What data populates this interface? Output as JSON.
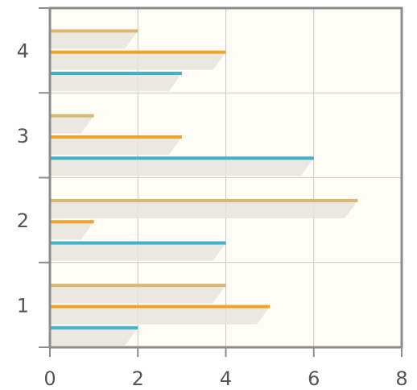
{
  "chart_data": {
    "type": "bar",
    "orientation": "horizontal",
    "categories": [
      "1",
      "2",
      "3",
      "4"
    ],
    "series": [
      {
        "values": [
          2,
          4,
          6,
          3
        ],
        "color": "#3fb1c8"
      },
      {
        "values": [
          5,
          1,
          3,
          4
        ],
        "color": "#f0a326"
      },
      {
        "values": [
          4,
          7,
          1,
          2
        ],
        "color": "#d9b773"
      }
    ],
    "xlim": [
      0,
      8
    ],
    "x_ticks": [
      "0",
      "2",
      "4",
      "6",
      "8"
    ],
    "grid": true,
    "legend": "none",
    "plot_background": "#fefcf4",
    "grid_color": "#c9c9c9",
    "frame_color": "#8c8c8c",
    "shadow_color": "#e6e4dc"
  }
}
